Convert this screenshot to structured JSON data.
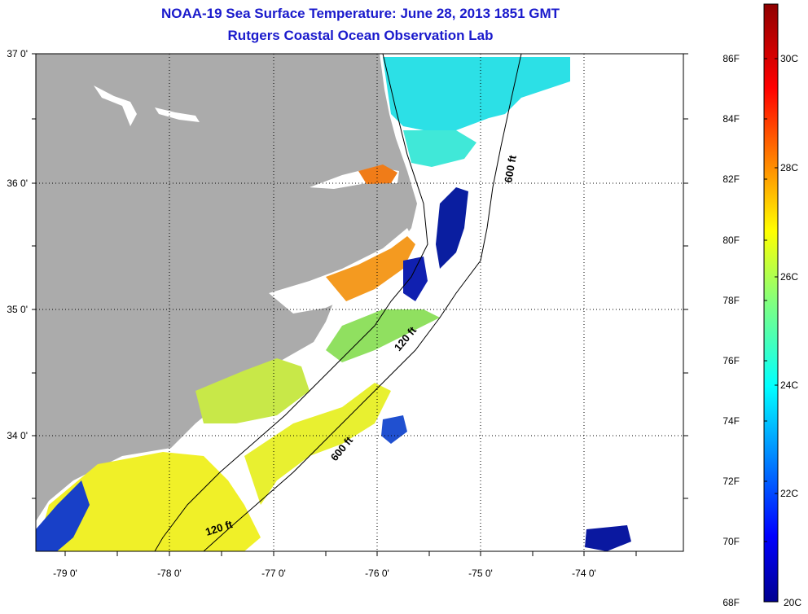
{
  "title": {
    "line1": "NOAA-19 Sea Surface Temperature:  June 28, 2013 1851 GMT",
    "line2": "Rutgers Coastal Ocean Observation Lab"
  },
  "axes": {
    "lat_labels": [
      "37 0'",
      "36 0'",
      "35 0'",
      "34 0'"
    ],
    "lon_labels": [
      "-79 0'",
      "-78 0'",
      "-77 0'",
      "-76 0'",
      "-75 0'",
      "-74 0'"
    ]
  },
  "contours": [
    {
      "label": "600 ft"
    },
    {
      "label": "120 ft"
    },
    {
      "label": "600 ft"
    },
    {
      "label": "120 ft"
    }
  ],
  "colorbar": {
    "fahrenheit_labels": [
      "86F",
      "84F",
      "82F",
      "80F",
      "78F",
      "76F",
      "74F",
      "72F",
      "70F",
      "68F"
    ],
    "celsius_labels": [
      "30C",
      "28C",
      "26C",
      "24C",
      "22C",
      "20C"
    ],
    "range_f": [
      68,
      87.8
    ],
    "range_c": [
      20,
      31
    ]
  },
  "colors": {
    "title": "#1a1acc",
    "land": "#ababab",
    "no_data": "#ffffff",
    "cold": "#00008f",
    "warm": "#8f0000"
  }
}
